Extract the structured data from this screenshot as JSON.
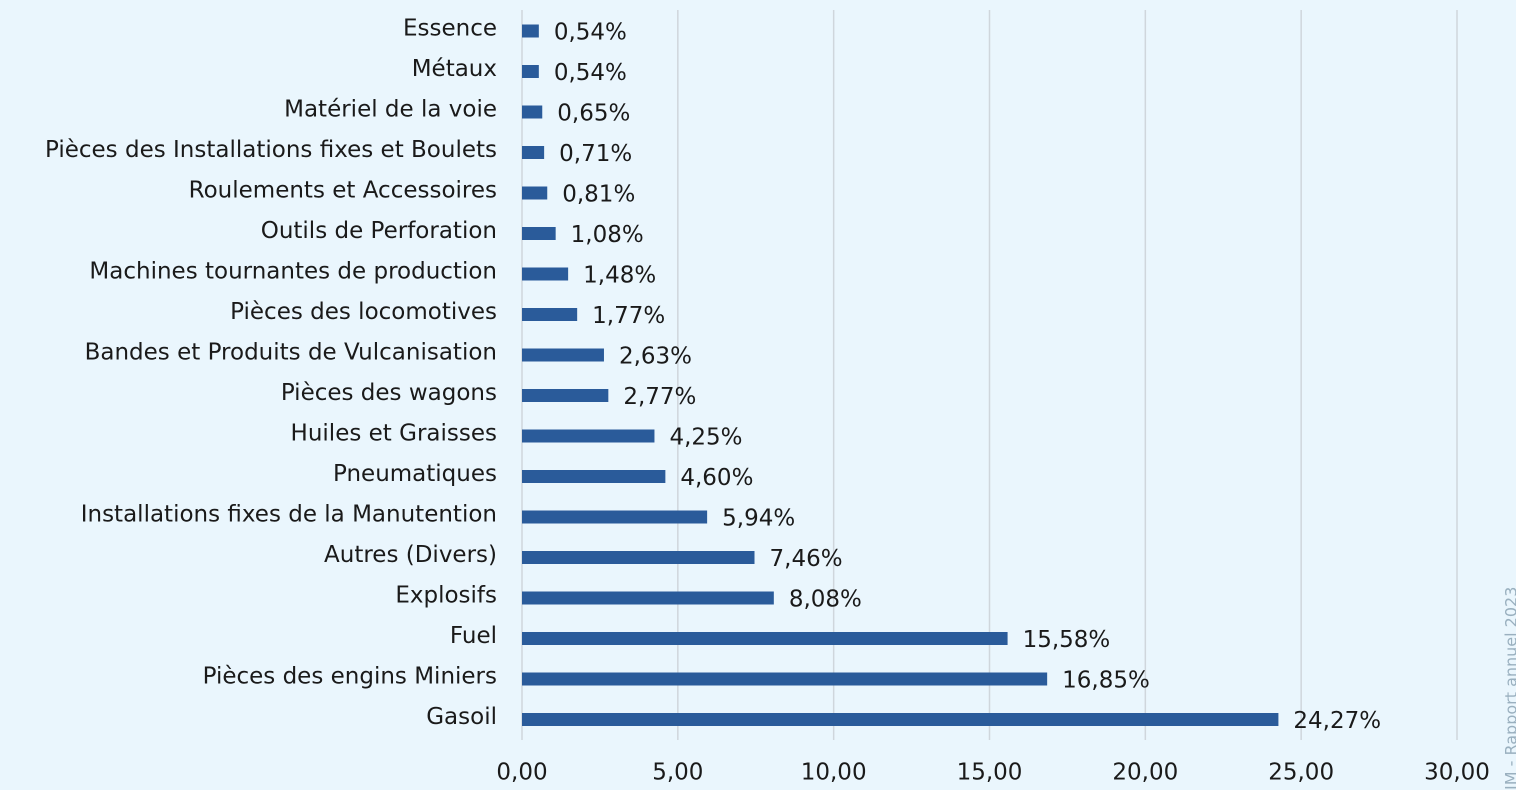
{
  "chart_data": {
    "type": "hbar",
    "categories": [
      "Essence",
      "Métaux",
      "Matériel de la voie",
      "Pièces des Installations fixes et Boulets",
      "Roulements et Accessoires",
      "Outils de Perforation",
      "Machines tournantes de production",
      "Pièces des locomotives",
      "Bandes et Produits de Vulcanisation",
      "Pièces des wagons",
      "Huiles et Graisses",
      "Pneumatiques",
      "Installations fixes de la Manutention",
      "Autres (Divers)",
      "Explosifs",
      "Fuel",
      "Pièces des engins Miniers",
      "Gasoil"
    ],
    "values": [
      0.54,
      0.54,
      0.65,
      0.71,
      0.81,
      1.08,
      1.48,
      1.77,
      2.63,
      2.77,
      4.25,
      4.6,
      5.94,
      7.46,
      8.08,
      15.58,
      16.85,
      24.27
    ],
    "value_labels": [
      "0,54%",
      "0,54%",
      "0,65%",
      "0,71%",
      "0,81%",
      "1,08%",
      "1,48%",
      "1,77%",
      "2,63%",
      "2,77%",
      "4,25%",
      "4,60%",
      "5,94%",
      "7,46%",
      "8,08%",
      "15,58%",
      "16,85%",
      "24,27%"
    ],
    "color": "#2a5b9a",
    "xlim": [
      0,
      30
    ],
    "xticks": [
      {
        "value": 0,
        "label": "0,00"
      },
      {
        "value": 5,
        "label": "5,00"
      },
      {
        "value": 10,
        "label": "10,00"
      },
      {
        "value": 15,
        "label": "15,00"
      },
      {
        "value": 20,
        "label": "20,00"
      },
      {
        "value": 25,
        "label": "25,00"
      },
      {
        "value": 30,
        "label": "30,00"
      }
    ],
    "grid": true,
    "watermark": "IM - Rapport annuel 2023"
  }
}
